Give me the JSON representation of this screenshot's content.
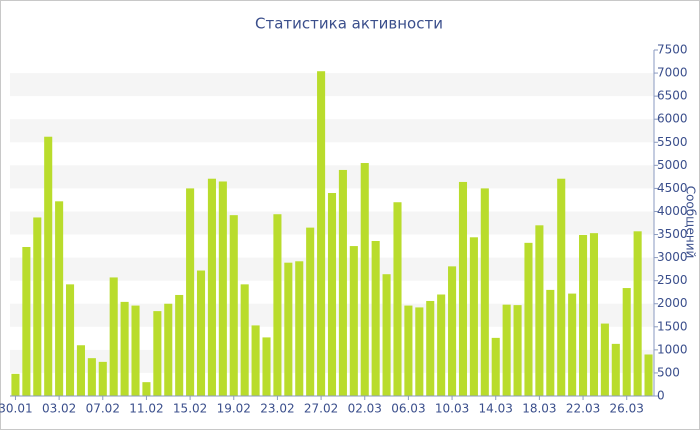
{
  "chart_data": {
    "type": "bar",
    "title": "Статистика активности",
    "y_label": "Сообщений",
    "categories": [
      "30.01",
      null,
      null,
      null,
      "03.02",
      null,
      null,
      null,
      "07.02",
      null,
      null,
      null,
      "11.02",
      null,
      null,
      null,
      "15.02",
      null,
      null,
      null,
      "19.02",
      null,
      null,
      null,
      "23.02",
      null,
      null,
      null,
      "27.02",
      null,
      null,
      null,
      "02.03",
      null,
      null,
      null,
      "06.03",
      null,
      null,
      null,
      "10.03",
      null,
      null,
      null,
      "14.03",
      null,
      null,
      null,
      "18.03",
      null,
      null,
      null,
      "22.03",
      null,
      null,
      null,
      "26.03",
      null,
      null
    ],
    "values": [
      480,
      3230,
      3870,
      5620,
      4220,
      2420,
      1100,
      820,
      740,
      2570,
      2040,
      1960,
      300,
      1840,
      2000,
      2190,
      4500,
      2720,
      4710,
      4650,
      3920,
      2420,
      1530,
      1270,
      3940,
      2890,
      2920,
      3650,
      7040,
      4400,
      4900,
      3250,
      5050,
      3360,
      2640,
      4200,
      1960,
      1920,
      2060,
      2200,
      2810,
      4640,
      3440,
      4500,
      1260,
      1980,
      1970,
      3320,
      3700,
      2300,
      4710,
      2220,
      3490,
      3530,
      1570,
      1130,
      2340,
      3570,
      900
    ],
    "color": "#b9dc2c",
    "ylim": [
      0,
      7500
    ],
    "yticks": [
      0,
      500,
      1000,
      1500,
      2000,
      2500,
      3000,
      3500,
      4000,
      4500,
      5000,
      5500,
      6000,
      6500,
      7000,
      7500
    ],
    "grid": true
  }
}
